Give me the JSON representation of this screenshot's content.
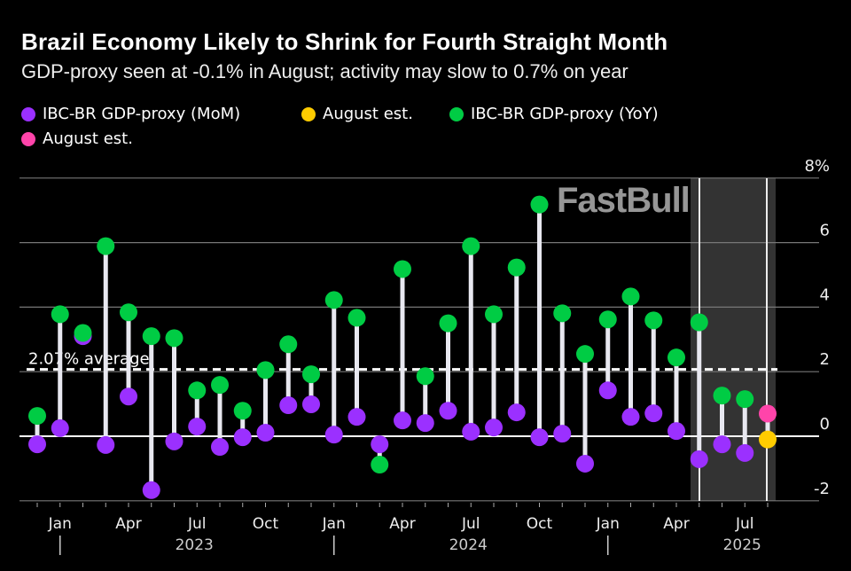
{
  "chart_data": {
    "type": "lollipop",
    "title": "Brazil Economy Likely to Shrink for Fourth Straight Month",
    "subtitle": "GDP-proxy seen at -0.1% in August; activity may slow to 0.7% on year",
    "x": [
      "2022-12",
      "2023-01",
      "2023-02",
      "2023-03",
      "2023-04",
      "2023-05",
      "2023-06",
      "2023-07",
      "2023-08",
      "2023-09",
      "2023-10",
      "2023-11",
      "2023-12",
      "2024-01",
      "2024-02",
      "2024-03",
      "2024-04",
      "2024-05",
      "2024-06",
      "2024-07",
      "2024-08",
      "2024-09",
      "2024-10",
      "2024-11",
      "2024-12",
      "2025-01",
      "2025-02",
      "2025-03",
      "2025-04",
      "2025-05",
      "2025-06",
      "2025-07",
      "2025-08"
    ],
    "series": [
      {
        "name": "IBC-BR GDP-proxy (MoM)",
        "color": "#9b30ff",
        "values": [
          -0.25,
          0.25,
          3.1,
          -0.27,
          1.23,
          -1.67,
          -0.16,
          0.3,
          -0.33,
          -0.03,
          0.11,
          0.96,
          0.99,
          0.05,
          0.6,
          -0.25,
          0.49,
          0.41,
          0.79,
          0.14,
          0.27,
          0.74,
          -0.03,
          0.08,
          -0.85,
          1.42,
          0.6,
          0.71,
          0.16,
          -0.71,
          -0.25,
          -0.52,
          null
        ]
      },
      {
        "name": "August est.",
        "color": "#ffcc00",
        "values": [
          null,
          null,
          null,
          null,
          null,
          null,
          null,
          null,
          null,
          null,
          null,
          null,
          null,
          null,
          null,
          null,
          null,
          null,
          null,
          null,
          null,
          null,
          null,
          null,
          null,
          null,
          null,
          null,
          null,
          null,
          null,
          null,
          -0.1
        ]
      },
      {
        "name": "IBC-BR GDP-proxy (YoY)",
        "color": "#00cc44",
        "values": [
          0.63,
          3.78,
          3.2,
          5.89,
          3.84,
          3.1,
          3.04,
          1.42,
          1.59,
          0.79,
          2.05,
          2.85,
          1.92,
          4.22,
          3.67,
          -0.88,
          5.18,
          1.86,
          3.5,
          5.89,
          3.78,
          5.23,
          7.18,
          3.81,
          2.55,
          3.62,
          4.33,
          3.59,
          2.44,
          3.53,
          1.26,
          1.15,
          null
        ]
      },
      {
        "name": "August est.",
        "color": "#ff44aa",
        "values": [
          null,
          null,
          null,
          null,
          null,
          null,
          null,
          null,
          null,
          null,
          null,
          null,
          null,
          null,
          null,
          null,
          null,
          null,
          null,
          null,
          null,
          null,
          null,
          null,
          null,
          null,
          null,
          null,
          null,
          null,
          null,
          null,
          0.7
        ]
      }
    ],
    "average": {
      "value": 2.07,
      "label": "2.07% average"
    },
    "ylim": [
      -2,
      8
    ],
    "yticks": [
      {
        "v": 8,
        "label": "8%"
      },
      {
        "v": 6,
        "label": "6"
      },
      {
        "v": 4,
        "label": "4"
      },
      {
        "v": 2,
        "label": "2"
      },
      {
        "v": 0,
        "label": "0"
      },
      {
        "v": -2,
        "label": "-2"
      }
    ],
    "month_labels": [
      {
        "i": 1,
        "label": "Jan"
      },
      {
        "i": 4,
        "label": "Apr"
      },
      {
        "i": 7,
        "label": "Jul"
      },
      {
        "i": 10,
        "label": "Oct"
      },
      {
        "i": 13,
        "label": "Jan"
      },
      {
        "i": 16,
        "label": "Apr"
      },
      {
        "i": 19,
        "label": "Jul"
      },
      {
        "i": 22,
        "label": "Oct"
      },
      {
        "i": 25,
        "label": "Jan"
      },
      {
        "i": 28,
        "label": "Apr"
      },
      {
        "i": 31,
        "label": "Jul"
      }
    ],
    "year_labels": [
      {
        "i": 1,
        "label": "2023"
      },
      {
        "i": 13,
        "label": "2024"
      },
      {
        "i": 25,
        "label": "2025"
      }
    ],
    "shaded_range": [
      "2025-04",
      "2025-08"
    ],
    "grid": true,
    "legend": "top-left"
  },
  "watermark": "FastBull"
}
